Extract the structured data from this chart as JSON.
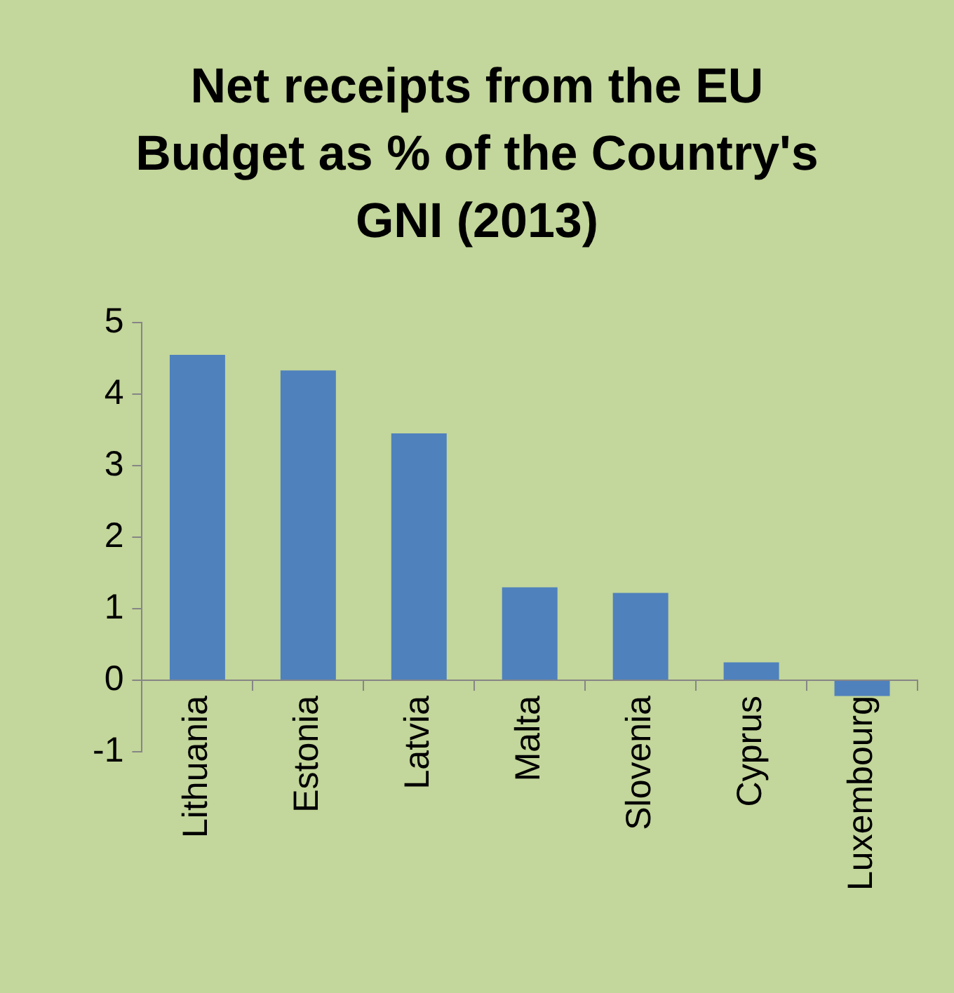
{
  "chart_data": {
    "type": "bar",
    "title": "Net receipts from the EU Budget as % of the Country's GNI (2013)",
    "categories": [
      "Lithuania",
      "Estonia",
      "Latvia",
      "Malta",
      "Slovenia",
      "Cyprus",
      "Luxembourg"
    ],
    "values": [
      4.55,
      4.33,
      3.45,
      1.3,
      1.22,
      0.25,
      -0.22
    ],
    "color": "#4f81bd",
    "ylim": [
      -1,
      5
    ],
    "yticks": [
      -1,
      0,
      1,
      2,
      3,
      4,
      5
    ],
    "grid": false,
    "legend": false
  }
}
